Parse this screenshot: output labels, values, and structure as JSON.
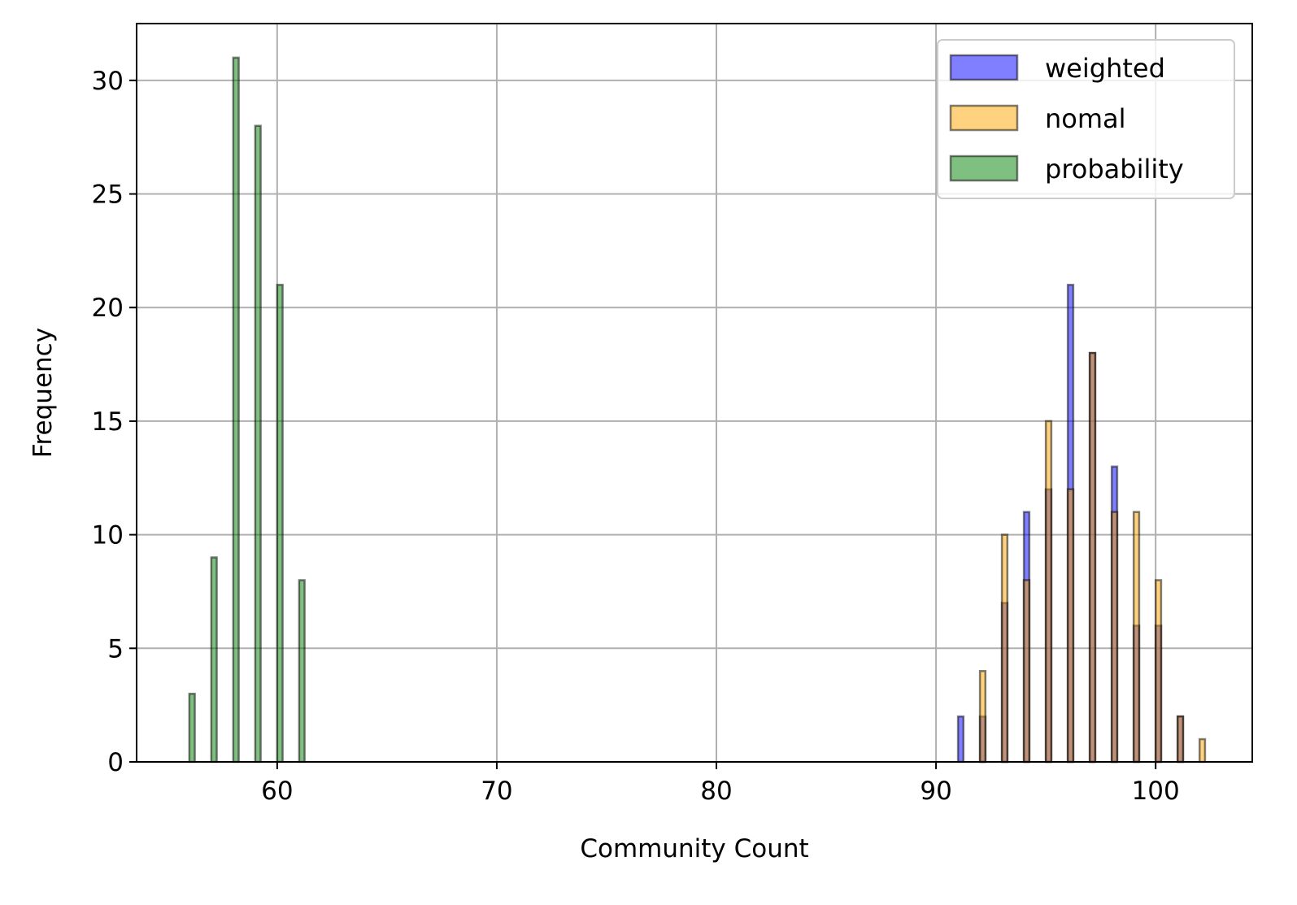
{
  "chart_data": {
    "type": "bar",
    "title": "",
    "xlabel": "Community Count",
    "ylabel": "Frequency",
    "xlim": [
      53.6,
      104.4
    ],
    "ylim": [
      0,
      32.5
    ],
    "xticks": [
      60,
      70,
      80,
      90,
      100
    ],
    "yticks": [
      0,
      5,
      10,
      15,
      20,
      25,
      30
    ],
    "grid": true,
    "legend_position": "top-right",
    "bin_width": 0.25,
    "series": [
      {
        "name": "weighted",
        "color": "#0000ff",
        "x": [
          91,
          92,
          93,
          94,
          95,
          96,
          97,
          98,
          99,
          100,
          101
        ],
        "values": [
          2,
          2,
          7,
          11,
          12,
          21,
          18,
          13,
          6,
          6,
          2
        ]
      },
      {
        "name": "nomal",
        "color": "#ffa500",
        "x": [
          92,
          93,
          94,
          95,
          96,
          97,
          98,
          99,
          100,
          101,
          102
        ],
        "values": [
          4,
          10,
          8,
          15,
          12,
          18,
          11,
          11,
          8,
          2,
          1
        ]
      },
      {
        "name": "probability",
        "color": "#008000",
        "x": [
          56,
          57,
          58,
          59,
          60,
          61
        ],
        "values": [
          3,
          9,
          31,
          28,
          21,
          8
        ]
      }
    ]
  }
}
